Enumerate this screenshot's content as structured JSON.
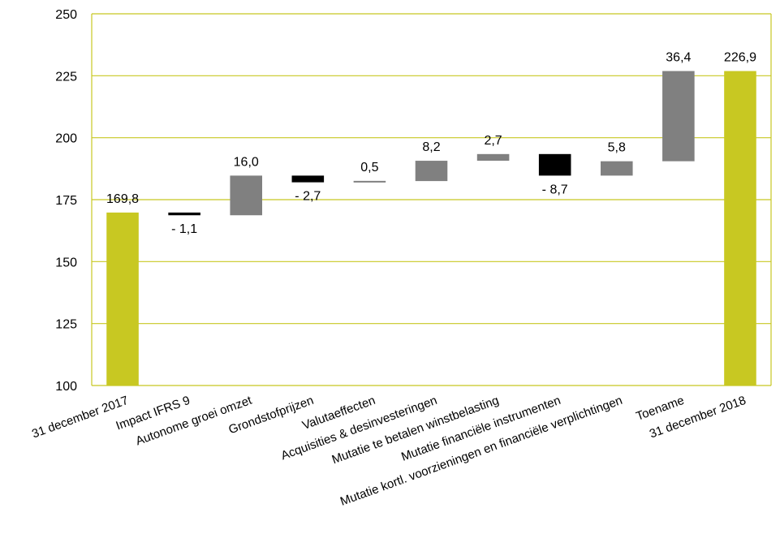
{
  "colors": {
    "axis": "#c8c822",
    "grid": "#c8c822",
    "total": "#c8c822",
    "increase": "#808080",
    "decrease": "#000000",
    "background": "#ffffff"
  },
  "chart_data": {
    "type": "bar",
    "subtype": "waterfall",
    "title": "",
    "xlabel": "",
    "ylabel": "",
    "ylim": [
      100,
      250
    ],
    "y_ticks": [
      100,
      125,
      150,
      175,
      200,
      225,
      250
    ],
    "y_tick_labels": [
      "100",
      "125",
      "150",
      "175",
      "200",
      "225",
      "250"
    ],
    "grid": true,
    "legend": "none",
    "categories": [
      "31 december 2017",
      "Impact IFRS 9",
      "Autonome groei omzet",
      "Grondstofprijzen",
      "Valutaeffecten",
      "Acquisities & desinvesteringen",
      "Mutatie te betalen winstbelasting",
      "Mutatie financiële instrumenten",
      "Mutatie kortl. voorzieningen en financiële verplichtingen",
      "Toename",
      "31 december 2018"
    ],
    "bars": [
      {
        "kind": "total",
        "start": 100,
        "end": 169.8,
        "label": "169,8",
        "label_pos": "above"
      },
      {
        "kind": "decrease",
        "start": 169.8,
        "end": 168.7,
        "label": "- 1,1",
        "label_pos": "below"
      },
      {
        "kind": "increase",
        "start": 168.7,
        "end": 184.7,
        "label": "16,0",
        "label_pos": "above"
      },
      {
        "kind": "decrease",
        "start": 184.7,
        "end": 182.0,
        "label": "- 2,7",
        "label_pos": "below"
      },
      {
        "kind": "increase",
        "start": 182.0,
        "end": 182.5,
        "label": "0,5",
        "label_pos": "above"
      },
      {
        "kind": "increase",
        "start": 182.5,
        "end": 190.7,
        "label": "8,2",
        "label_pos": "above"
      },
      {
        "kind": "increase",
        "start": 190.7,
        "end": 193.4,
        "label": "2,7",
        "label_pos": "above"
      },
      {
        "kind": "decrease",
        "start": 193.4,
        "end": 184.7,
        "label": "- 8,7",
        "label_pos": "below"
      },
      {
        "kind": "increase",
        "start": 184.7,
        "end": 190.5,
        "label": "5,8",
        "label_pos": "above"
      },
      {
        "kind": "increase",
        "start": 190.5,
        "end": 226.9,
        "label": "36,4",
        "label_pos": "above"
      },
      {
        "kind": "total",
        "start": 100,
        "end": 226.9,
        "label": "226,9",
        "label_pos": "above"
      }
    ]
  }
}
